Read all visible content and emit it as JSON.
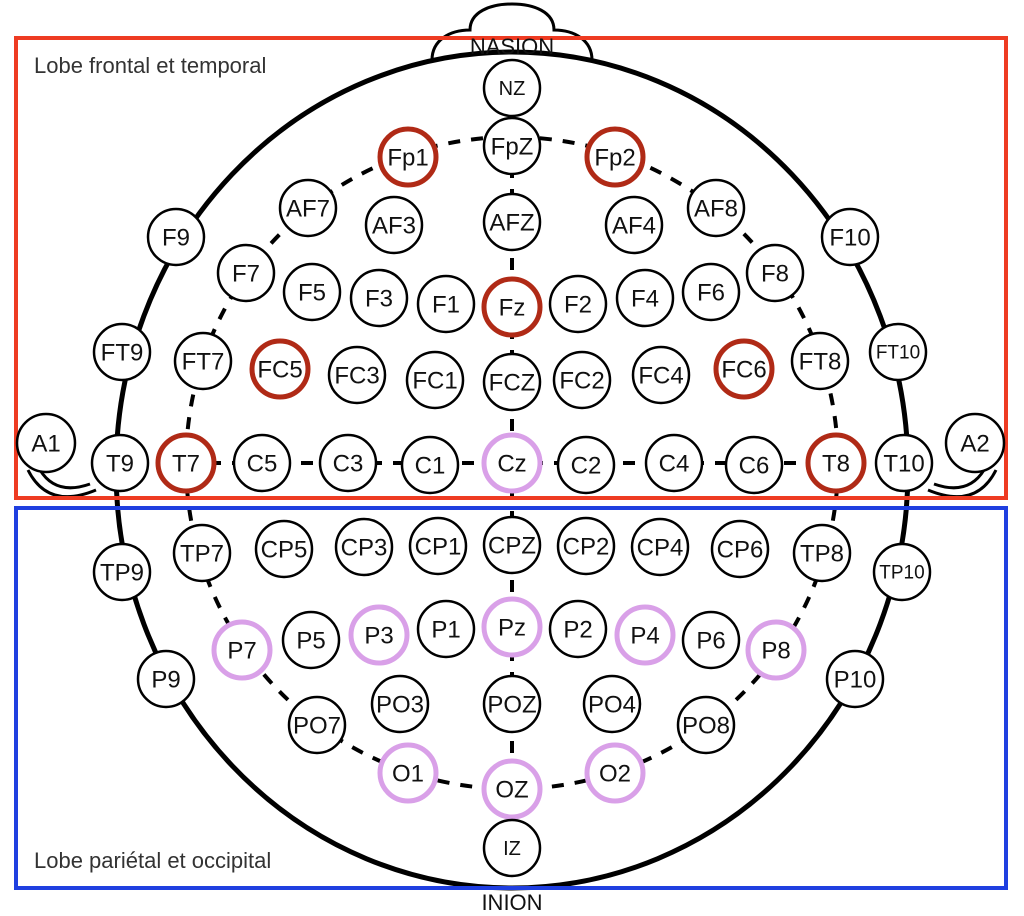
{
  "regions": {
    "frontal_temporal": {
      "label": "Lobe frontal et temporal",
      "color": "#ee3b22"
    },
    "parietal_occipital": {
      "label": "Lobe pariétal et occipital",
      "color": "#1f3fe0"
    }
  },
  "landmarks": {
    "nasion": "NASION",
    "inion": "INION"
  },
  "highlight_colors": {
    "frontal": "#b02a16",
    "parietal": "#d9a0e8"
  },
  "electrodes": [
    {
      "id": "nz",
      "label": "NZ"
    },
    {
      "id": "fpz",
      "label": "FpZ"
    },
    {
      "id": "fp1",
      "label": "Fp1",
      "highlight": "frontal"
    },
    {
      "id": "fp2",
      "label": "Fp2",
      "highlight": "frontal"
    },
    {
      "id": "af7",
      "label": "AF7"
    },
    {
      "id": "af3",
      "label": "AF3"
    },
    {
      "id": "afz",
      "label": "AFZ"
    },
    {
      "id": "af4",
      "label": "AF4"
    },
    {
      "id": "af8",
      "label": "AF8"
    },
    {
      "id": "f9",
      "label": "F9"
    },
    {
      "id": "f10",
      "label": "F10"
    },
    {
      "id": "f7",
      "label": "F7"
    },
    {
      "id": "f5",
      "label": "F5"
    },
    {
      "id": "f3",
      "label": "F3"
    },
    {
      "id": "f1",
      "label": "F1"
    },
    {
      "id": "fz",
      "label": "Fz",
      "highlight": "frontal"
    },
    {
      "id": "f2",
      "label": "F2"
    },
    {
      "id": "f4",
      "label": "F4"
    },
    {
      "id": "f6",
      "label": "F6"
    },
    {
      "id": "f8",
      "label": "F8"
    },
    {
      "id": "ft9",
      "label": "FT9"
    },
    {
      "id": "ft7",
      "label": "FT7"
    },
    {
      "id": "fc5",
      "label": "FC5",
      "highlight": "frontal"
    },
    {
      "id": "fc3",
      "label": "FC3"
    },
    {
      "id": "fc1",
      "label": "FC1"
    },
    {
      "id": "fcz",
      "label": "FCZ"
    },
    {
      "id": "fc2",
      "label": "FC2"
    },
    {
      "id": "fc4",
      "label": "FC4"
    },
    {
      "id": "fc6",
      "label": "FC6",
      "highlight": "frontal"
    },
    {
      "id": "ft8",
      "label": "FT8"
    },
    {
      "id": "ft10",
      "label": "FT10"
    },
    {
      "id": "a1",
      "label": "A1"
    },
    {
      "id": "t9",
      "label": "T9"
    },
    {
      "id": "t7",
      "label": "T7",
      "highlight": "frontal"
    },
    {
      "id": "c5",
      "label": "C5"
    },
    {
      "id": "c3",
      "label": "C3"
    },
    {
      "id": "c1",
      "label": "C1"
    },
    {
      "id": "cz",
      "label": "Cz",
      "highlight": "parietal"
    },
    {
      "id": "c2",
      "label": "C2"
    },
    {
      "id": "c4",
      "label": "C4"
    },
    {
      "id": "c6",
      "label": "C6"
    },
    {
      "id": "t8",
      "label": "T8",
      "highlight": "frontal"
    },
    {
      "id": "t10",
      "label": "T10"
    },
    {
      "id": "a2",
      "label": "A2"
    },
    {
      "id": "tp9",
      "label": "TP9"
    },
    {
      "id": "tp7",
      "label": "TP7"
    },
    {
      "id": "cp5",
      "label": "CP5"
    },
    {
      "id": "cp3",
      "label": "CP3"
    },
    {
      "id": "cp1",
      "label": "CP1"
    },
    {
      "id": "cpz",
      "label": "CPZ"
    },
    {
      "id": "cp2",
      "label": "CP2"
    },
    {
      "id": "cp4",
      "label": "CP4"
    },
    {
      "id": "cp6",
      "label": "CP6"
    },
    {
      "id": "tp8",
      "label": "TP8"
    },
    {
      "id": "tp10",
      "label": "TP10"
    },
    {
      "id": "p9",
      "label": "P9"
    },
    {
      "id": "p7",
      "label": "P7",
      "highlight": "parietal"
    },
    {
      "id": "p5",
      "label": "P5"
    },
    {
      "id": "p3",
      "label": "P3",
      "highlight": "parietal"
    },
    {
      "id": "p1",
      "label": "P1"
    },
    {
      "id": "pz",
      "label": "Pz",
      "highlight": "parietal"
    },
    {
      "id": "p2",
      "label": "P2"
    },
    {
      "id": "p4",
      "label": "P4",
      "highlight": "parietal"
    },
    {
      "id": "p6",
      "label": "P6"
    },
    {
      "id": "p8",
      "label": "P8",
      "highlight": "parietal"
    },
    {
      "id": "p10",
      "label": "P10"
    },
    {
      "id": "po7",
      "label": "PO7"
    },
    {
      "id": "po3",
      "label": "PO3"
    },
    {
      "id": "poz",
      "label": "POZ"
    },
    {
      "id": "po4",
      "label": "PO4"
    },
    {
      "id": "po8",
      "label": "PO8"
    },
    {
      "id": "o1",
      "label": "O1",
      "highlight": "parietal"
    },
    {
      "id": "oz",
      "label": "OZ",
      "highlight": "parietal"
    },
    {
      "id": "o2",
      "label": "O2",
      "highlight": "parietal"
    },
    {
      "id": "iz",
      "label": "IZ"
    }
  ]
}
